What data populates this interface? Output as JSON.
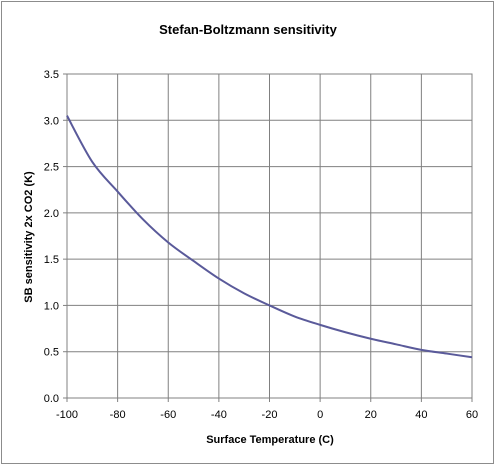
{
  "chart_data": {
    "type": "line",
    "title": "Stefan-Boltzmann sensitivity",
    "xlabel": "Surface Temperature (C)",
    "ylabel": "SB sensitivity 2x CO2 (K)",
    "xlim": [
      -100,
      60
    ],
    "ylim": [
      0,
      3.5
    ],
    "x_ticks": [
      "-100",
      "-80",
      "-60",
      "-40",
      "-20",
      "0",
      "20",
      "40",
      "60"
    ],
    "y_ticks": [
      "0.0",
      "0.5",
      "1.0",
      "1.5",
      "2.0",
      "2.5",
      "3.0",
      "3.5"
    ],
    "grid": true,
    "legend": "none",
    "series": [
      {
        "color": "#5a5a9a",
        "x": [
          -100,
          -90,
          -80,
          -70,
          -60,
          -50,
          -40,
          -30,
          -20,
          -10,
          0,
          10,
          20,
          30,
          40,
          50,
          60
        ],
        "y": [
          3.05,
          2.55,
          2.23,
          1.93,
          1.68,
          1.48,
          1.29,
          1.13,
          1.0,
          0.88,
          0.79,
          0.71,
          0.64,
          0.58,
          0.52,
          0.48,
          0.44
        ]
      }
    ]
  }
}
